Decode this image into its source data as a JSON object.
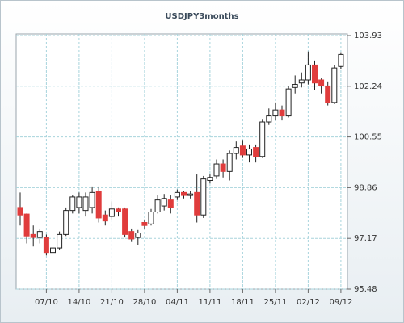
{
  "chart_data": {
    "type": "candlestick",
    "title": "USDJPY3months",
    "categories": [
      null,
      null,
      null,
      null,
      "07/10",
      null,
      null,
      null,
      null,
      "14/10",
      null,
      null,
      null,
      null,
      "21/10",
      null,
      null,
      null,
      null,
      "28/10",
      null,
      null,
      null,
      null,
      "04/11",
      null,
      null,
      null,
      null,
      "11/11",
      null,
      null,
      null,
      null,
      "18/11",
      null,
      null,
      null,
      null,
      "25/11",
      null,
      null,
      null,
      null,
      "02/12",
      null,
      null,
      null,
      null,
      "09/12"
    ],
    "open": [
      98.2,
      97.98,
      97.3,
      97.2,
      97.2,
      96.7,
      96.85,
      97.3,
      98.1,
      98.2,
      98.1,
      98.2,
      98.75,
      97.95,
      97.9,
      98.15,
      98.15,
      97.4,
      97.2,
      97.7,
      97.65,
      98.05,
      98.25,
      98.45,
      98.55,
      98.7,
      98.6,
      98.7,
      97.95,
      99.1,
      99.25,
      99.65,
      99.4,
      100.0,
      100.25,
      99.95,
      100.2,
      99.9,
      101.05,
      101.25,
      101.45,
      101.25,
      102.2,
      102.35,
      102.45,
      102.95,
      102.45,
      102.25,
      101.7,
      102.9
    ],
    "high": [
      98.7,
      98.0,
      97.6,
      97.5,
      97.3,
      97.3,
      97.4,
      98.2,
      98.6,
      98.7,
      98.7,
      98.9,
      98.9,
      98.1,
      98.4,
      98.2,
      98.2,
      97.5,
      97.45,
      97.8,
      98.15,
      98.6,
      98.65,
      98.6,
      98.8,
      98.75,
      98.75,
      99.3,
      99.25,
      99.3,
      99.8,
      99.8,
      100.1,
      100.4,
      100.45,
      100.3,
      100.3,
      101.15,
      101.5,
      101.7,
      101.6,
      102.25,
      102.6,
      102.7,
      103.4,
      103.1,
      102.5,
      102.4,
      102.95,
      103.35
    ],
    "low": [
      97.6,
      97.0,
      96.9,
      97.0,
      96.6,
      96.6,
      96.8,
      97.25,
      98.0,
      98.0,
      97.9,
      98.0,
      97.7,
      97.6,
      97.8,
      97.9,
      97.2,
      97.05,
      96.95,
      97.5,
      97.6,
      98.0,
      98.1,
      98.0,
      98.45,
      98.5,
      98.5,
      97.7,
      97.85,
      99.0,
      99.15,
      99.2,
      99.1,
      99.8,
      99.85,
      99.7,
      99.7,
      99.85,
      100.95,
      101.1,
      101.1,
      101.2,
      102.0,
      102.2,
      102.3,
      102.1,
      102.0,
      101.6,
      101.65,
      102.8
    ],
    "close": [
      97.95,
      97.25,
      97.2,
      97.4,
      96.7,
      96.85,
      97.3,
      98.1,
      98.55,
      98.55,
      98.55,
      98.7,
      97.85,
      97.75,
      98.15,
      98.05,
      97.3,
      97.15,
      97.35,
      97.6,
      98.05,
      98.45,
      98.5,
      98.2,
      98.7,
      98.6,
      98.65,
      97.95,
      99.15,
      99.2,
      99.65,
      99.4,
      100.0,
      100.2,
      99.95,
      100.15,
      99.9,
      101.05,
      101.25,
      101.45,
      101.25,
      102.15,
      102.3,
      102.45,
      102.95,
      102.35,
      102.25,
      101.7,
      102.85,
      103.3
    ],
    "up_color": "#ffffff",
    "down_color": "#e03c3c",
    "ylim": [
      95.48,
      103.93
    ],
    "yticks": [
      95.48,
      97.17,
      98.86,
      100.55,
      102.24,
      103.93
    ],
    "grid": true
  }
}
